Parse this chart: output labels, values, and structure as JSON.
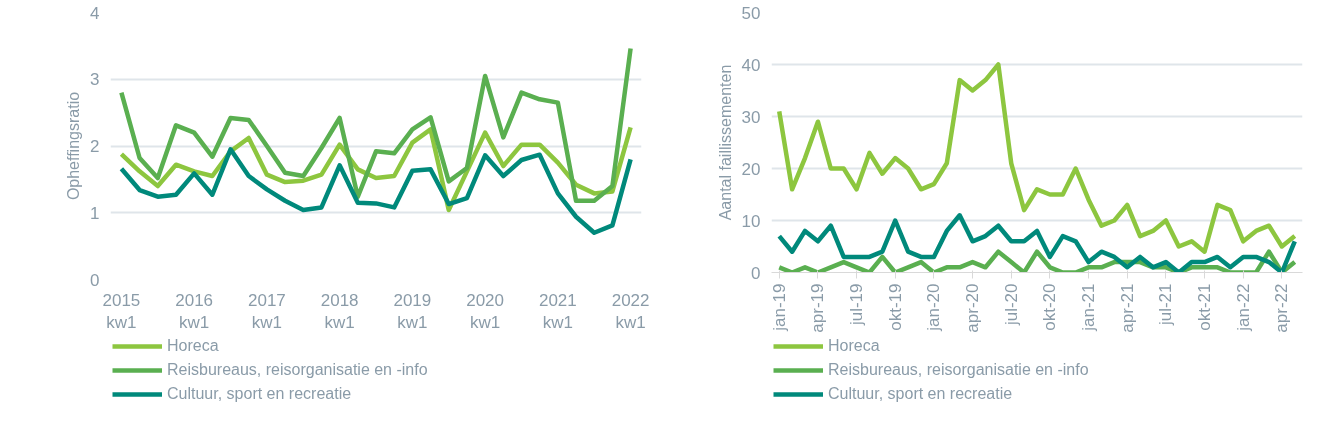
{
  "chart_data": [
    {
      "type": "line",
      "ylabel": "Opheffingsratio",
      "categories": [
        "2015\nkw1",
        null,
        null,
        null,
        "2016\nkw1",
        null,
        null,
        null,
        "2017\nkw1",
        null,
        null,
        null,
        "2018\nkw1",
        null,
        null,
        null,
        "2019\nkw1",
        null,
        null,
        null,
        "2020\nkw1",
        null,
        null,
        null,
        "2021\nkw1",
        null,
        null,
        null,
        "2022\nkw1"
      ],
      "ylim": [
        0,
        4
      ],
      "yticks": [
        0,
        1,
        2,
        3,
        4
      ],
      "grid": "y",
      "legend": "bottom",
      "line_style": "solid",
      "marker": "none",
      "series": [
        {
          "name": "Horeca",
          "color": "#8dc63f",
          "values": [
            1.88,
            1.62,
            1.4,
            1.72,
            1.62,
            1.55,
            1.92,
            2.12,
            1.57,
            1.46,
            1.48,
            1.57,
            2.02,
            1.65,
            1.52,
            1.55,
            2.05,
            2.25,
            1.04,
            1.62,
            2.2,
            1.7,
            2.02,
            2.02,
            1.75,
            1.42,
            1.29,
            1.32,
            2.28
          ]
        },
        {
          "name": "Reisbureaus, reisorganisatie en -info",
          "color": "#5aaf50",
          "values": [
            2.8,
            1.82,
            1.52,
            2.31,
            2.2,
            1.84,
            2.42,
            2.39,
            2.0,
            1.6,
            1.55,
            1.97,
            2.42,
            1.24,
            1.92,
            1.89,
            2.25,
            2.43,
            1.47,
            1.67,
            3.05,
            2.13,
            2.8,
            2.7,
            2.65,
            1.18,
            1.18,
            1.4,
            3.46
          ]
        },
        {
          "name": "Cultuur, sport en recreatie",
          "color": "#00897b",
          "values": [
            1.66,
            1.34,
            1.24,
            1.27,
            1.59,
            1.27,
            1.95,
            1.55,
            1.35,
            1.18,
            1.04,
            1.08,
            1.71,
            1.15,
            1.14,
            1.08,
            1.63,
            1.65,
            1.13,
            1.22,
            1.86,
            1.55,
            1.79,
            1.87,
            1.29,
            0.94,
            0.7,
            0.81,
            1.8
          ]
        }
      ]
    },
    {
      "type": "line",
      "ylabel": "Aantal faillissementen",
      "categories": [
        "jan-19",
        null,
        null,
        "apr-19",
        null,
        null,
        "jul-19",
        null,
        null,
        "okt-19",
        null,
        null,
        "jan-20",
        null,
        null,
        "apr-20",
        null,
        null,
        "jul-20",
        null,
        null,
        "okt-20",
        null,
        null,
        "jan-21",
        null,
        null,
        "apr-21",
        null,
        null,
        "jul-21",
        null,
        null,
        "okt-21",
        null,
        null,
        "jan-22",
        null,
        null,
        "apr-22",
        null
      ],
      "ylim": [
        0,
        50
      ],
      "yticks": [
        0,
        10,
        20,
        30,
        40,
        50
      ],
      "grid": "y",
      "legend": "bottom",
      "line_style": "solid",
      "marker": "none",
      "series": [
        {
          "name": "Horeca",
          "color": "#8dc63f",
          "values": [
            31,
            16,
            22,
            29,
            20,
            20,
            16,
            23,
            19,
            22,
            20,
            16,
            17,
            21,
            37,
            35,
            37,
            40,
            21,
            12,
            16,
            15,
            15,
            20,
            14,
            9,
            10,
            13,
            7,
            8,
            10,
            5,
            6,
            4,
            13,
            12,
            6,
            8,
            9,
            5,
            7
          ]
        },
        {
          "name": "Reisbureaus, reisorganisatie en -info",
          "color": "#5aaf50",
          "values": [
            1,
            0,
            1,
            0,
            1,
            2,
            1,
            0,
            3,
            0,
            1,
            2,
            0,
            1,
            1,
            2,
            1,
            4,
            2,
            0,
            4,
            1,
            0,
            0,
            1,
            1,
            2,
            2,
            2,
            1,
            1,
            0,
            1,
            1,
            1,
            0,
            0,
            0,
            4,
            0,
            2
          ]
        },
        {
          "name": "Cultuur, sport en recreatie",
          "color": "#00897b",
          "values": [
            7,
            4,
            8,
            6,
            9,
            3,
            3,
            3,
            4,
            10,
            4,
            3,
            3,
            8,
            11,
            6,
            7,
            9,
            6,
            6,
            8,
            3,
            7,
            6,
            2,
            4,
            3,
            1,
            3,
            1,
            2,
            0,
            2,
            2,
            3,
            1,
            3,
            3,
            2,
            0,
            6
          ]
        }
      ]
    }
  ]
}
